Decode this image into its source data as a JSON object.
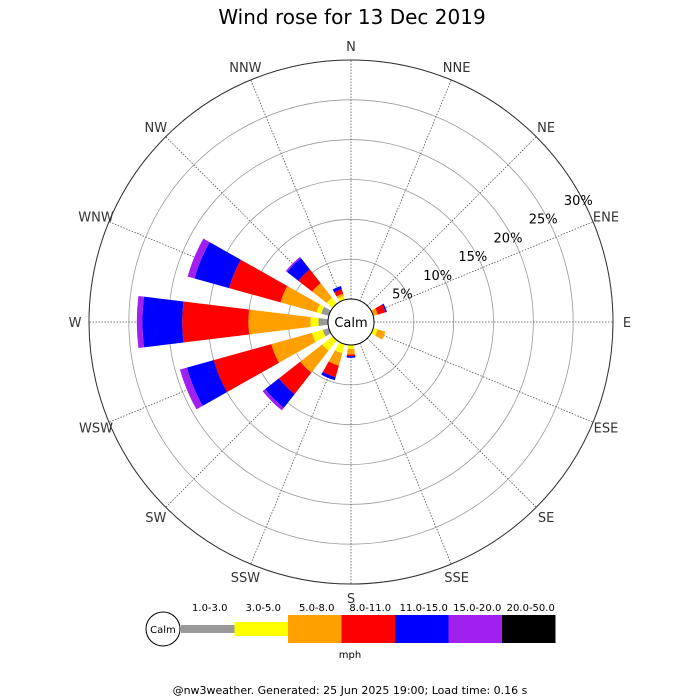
{
  "title": "Wind rose for 13 Dec 2019",
  "footer": "@nw3weather. Generated: 25 Jun 2025 19:00; Load time: 0.16 s",
  "calm_label": "Calm",
  "unit": "mph",
  "chart_data": {
    "type": "wind-rose",
    "directions": [
      "N",
      "NNE",
      "NE",
      "ENE",
      "E",
      "ESE",
      "SE",
      "SSE",
      "S",
      "SSW",
      "SW",
      "WSW",
      "W",
      "WNW",
      "NW",
      "NNW"
    ],
    "radial_ticks": [
      "5%",
      "10%",
      "15%",
      "20%",
      "25%",
      "30%"
    ],
    "radial_max": 30,
    "speed_bins": [
      {
        "label": "1.0-3.0",
        "color": "#999999"
      },
      {
        "label": "3.0-5.0",
        "color": "#ffff00"
      },
      {
        "label": "5.0-8.0",
        "color": "#ffa000"
      },
      {
        "label": "8.0-11.0",
        "color": "#ff0000"
      },
      {
        "label": "11.0-15.0",
        "color": "#0000ff"
      },
      {
        "label": "15.0-20.0",
        "color": "#a020f0"
      },
      {
        "label": "20.0-50.0",
        "color": "#000000"
      }
    ],
    "cumulative_percent": {
      "N": [
        0,
        0,
        0,
        0,
        0,
        0,
        0
      ],
      "NNE": [
        0,
        0,
        0,
        0,
        0,
        0,
        0
      ],
      "NE": [
        0,
        0,
        0,
        0,
        0,
        0,
        0
      ],
      "ENE": [
        0,
        0,
        0.6,
        1.6,
        1.8,
        1.8,
        1.8
      ],
      "E": [
        0,
        0,
        0,
        0,
        0,
        0,
        0
      ],
      "ESE": [
        0,
        0.6,
        1.6,
        1.6,
        1.6,
        1.6,
        1.6
      ],
      "SE": [
        0,
        0,
        0,
        0,
        0,
        0,
        0
      ],
      "SSE": [
        0,
        0,
        0,
        0,
        0,
        0,
        0
      ],
      "S": [
        0,
        0.5,
        1.2,
        1.4,
        1.6,
        1.6,
        1.6
      ],
      "SSW": [
        0,
        1.2,
        2.8,
        4.3,
        4.7,
        4.7,
        4.7
      ],
      "SW": [
        0,
        1.7,
        5.2,
        8.6,
        10.8,
        11.2,
        11.2
      ],
      "WSW": [
        0.8,
        2.2,
        7.5,
        15.0,
        18.5,
        19.4,
        19.4
      ],
      "W": [
        1.2,
        2.2,
        10.0,
        18.3,
        23.3,
        24.0,
        24.0
      ],
      "WNW": [
        1.0,
        1.6,
        6.3,
        13.0,
        17.5,
        18.4,
        18.4
      ],
      "NW": [
        0,
        1.0,
        3.3,
        5.5,
        7.3,
        7.5,
        7.5
      ],
      "NNW": [
        0,
        0.5,
        0.8,
        1.4,
        1.8,
        1.8,
        1.8
      ]
    }
  }
}
